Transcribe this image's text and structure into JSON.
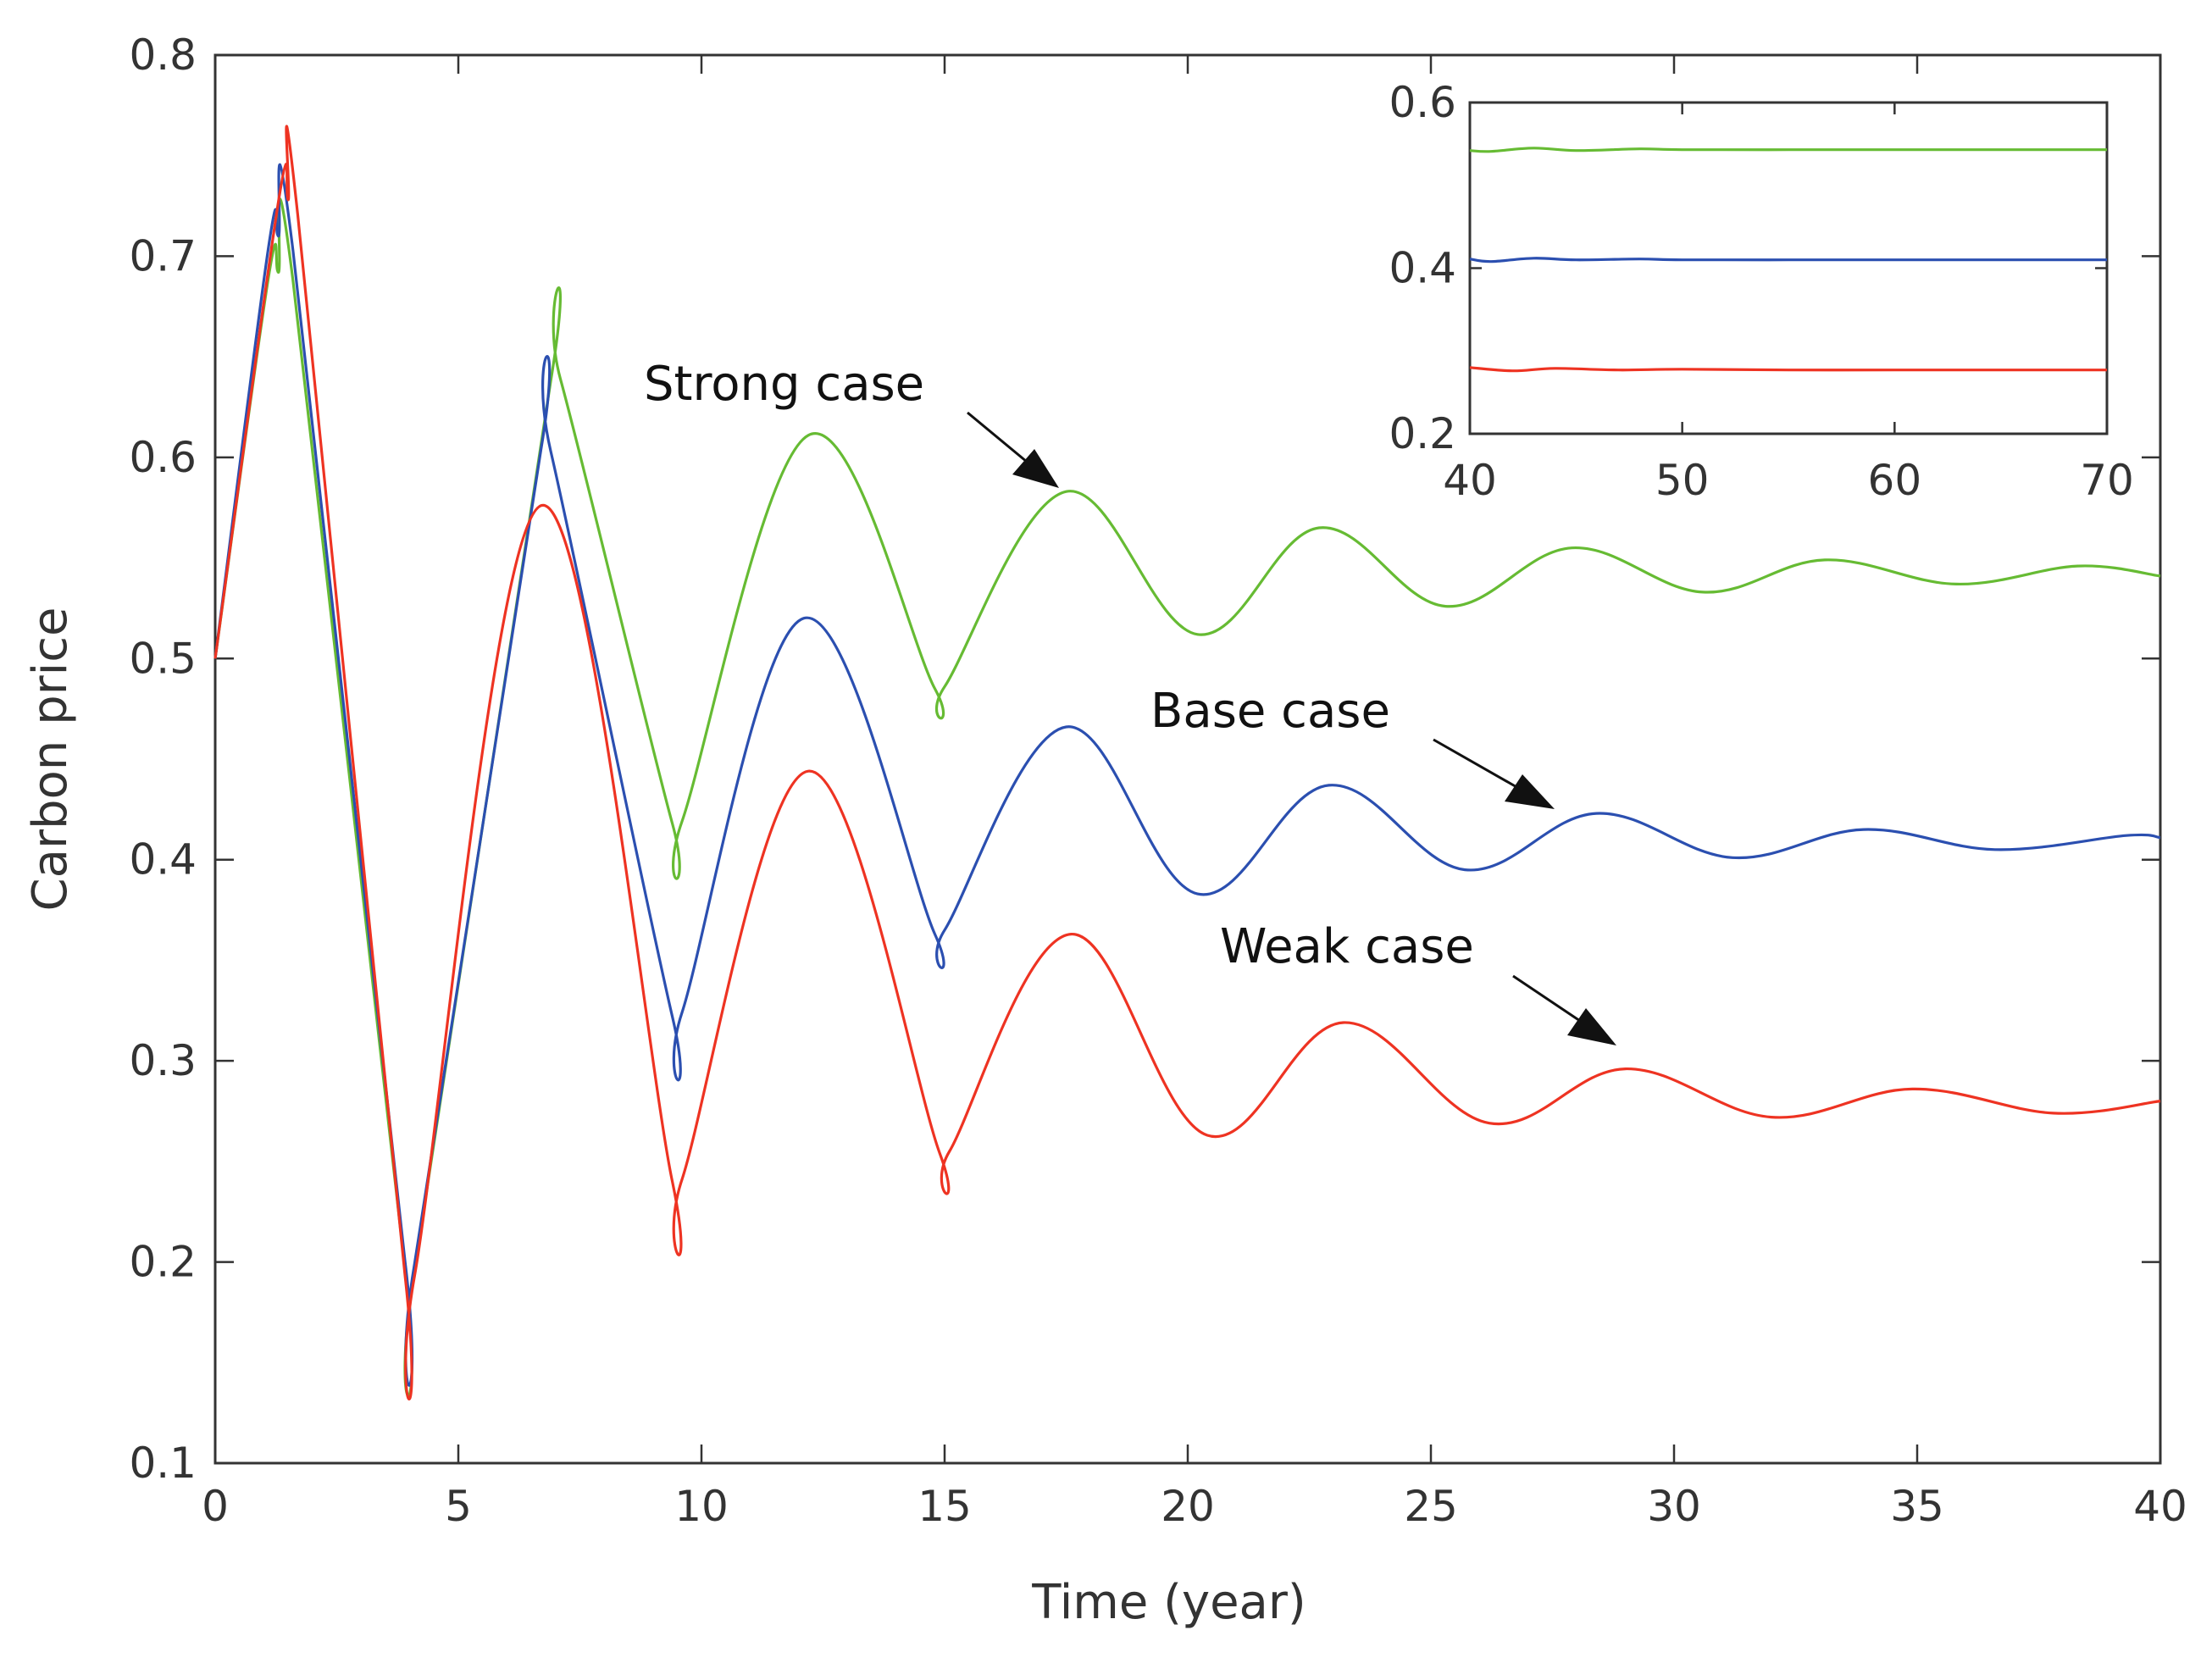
{
  "chart_data": {
    "type": "line",
    "xlabel": "Time (year)",
    "ylabel": "Carbon price",
    "xlim": [
      0,
      40
    ],
    "ylim": [
      0.1,
      0.8
    ],
    "xticks": [
      0,
      5,
      10,
      15,
      20,
      25,
      30,
      35,
      40
    ],
    "yticks": [
      0.1,
      0.2,
      0.3,
      0.4,
      0.5,
      0.6,
      0.7,
      0.8
    ],
    "xtick_labels": [
      "0",
      "5",
      "10",
      "15",
      "20",
      "25",
      "30",
      "35",
      "40"
    ],
    "ytick_labels": [
      "0.1",
      "0.2",
      "0.3",
      "0.4",
      "0.5",
      "0.6",
      "0.7",
      "0.8"
    ],
    "grid": false,
    "series": [
      {
        "name": "Strong case",
        "color": "#66bb33",
        "points": [
          [
            0,
            0.5
          ],
          [
            1.1,
            0.69
          ],
          [
            1.3,
            0.692
          ],
          [
            1.6,
            0.688
          ],
          [
            3.9,
            0.197
          ],
          [
            4.1,
            0.196
          ],
          [
            6.9,
            0.638
          ],
          [
            7.1,
            0.639
          ],
          [
            9.4,
            0.418
          ],
          [
            9.6,
            0.419
          ],
          [
            12.2,
            0.611
          ],
          [
            14.8,
            0.485
          ],
          [
            15.0,
            0.486
          ],
          [
            17.5,
            0.583
          ],
          [
            20.2,
            0.512
          ],
          [
            22.7,
            0.565
          ],
          [
            25.3,
            0.526
          ],
          [
            27.9,
            0.555
          ],
          [
            30.6,
            0.533
          ],
          [
            33.1,
            0.549
          ],
          [
            35.8,
            0.537
          ],
          [
            38.3,
            0.546
          ],
          [
            40,
            0.541
          ]
        ]
      },
      {
        "name": "Base case",
        "color": "#2b4fb0",
        "points": [
          [
            0,
            0.5
          ],
          [
            1.1,
            0.705
          ],
          [
            1.3,
            0.71
          ],
          [
            1.6,
            0.703
          ],
          [
            3.9,
            0.201
          ],
          [
            4.1,
            0.199
          ],
          [
            6.7,
            0.604
          ],
          [
            6.9,
            0.603
          ],
          [
            9.4,
            0.322
          ],
          [
            9.6,
            0.324
          ],
          [
            12.1,
            0.52
          ],
          [
            14.8,
            0.363
          ],
          [
            15.0,
            0.365
          ],
          [
            17.5,
            0.466
          ],
          [
            20.2,
            0.383
          ],
          [
            22.9,
            0.437
          ],
          [
            25.7,
            0.395
          ],
          [
            28.4,
            0.423
          ],
          [
            31.2,
            0.401
          ],
          [
            33.9,
            0.415
          ],
          [
            36.6,
            0.405
          ],
          [
            39.3,
            0.412
          ],
          [
            40,
            0.411
          ]
        ]
      },
      {
        "name": "Weak case",
        "color": "#ee3322",
        "points": [
          [
            0,
            0.5
          ],
          [
            1.3,
            0.727
          ],
          [
            1.5,
            0.728
          ],
          [
            1.7,
            0.72
          ],
          [
            3.9,
            0.194
          ],
          [
            4.1,
            0.193
          ],
          [
            6.7,
            0.576
          ],
          [
            9.4,
            0.24
          ],
          [
            9.6,
            0.241
          ],
          [
            12.2,
            0.444
          ],
          [
            14.9,
            0.254
          ],
          [
            15.1,
            0.255
          ],
          [
            17.6,
            0.363
          ],
          [
            20.4,
            0.263
          ],
          [
            23.2,
            0.319
          ],
          [
            26.2,
            0.269
          ],
          [
            29.0,
            0.296
          ],
          [
            32.0,
            0.272
          ],
          [
            34.9,
            0.286
          ],
          [
            37.8,
            0.274
          ],
          [
            40,
            0.28
          ]
        ]
      }
    ],
    "annotations": [
      {
        "text": "Strong case",
        "series": "Strong case"
      },
      {
        "text": "Base case",
        "series": "Base case"
      },
      {
        "text": "Weak case",
        "series": "Weak case"
      }
    ],
    "inset": {
      "type": "line",
      "xlim": [
        40,
        70
      ],
      "ylim": [
        0.2,
        0.6
      ],
      "xticks": [
        40,
        50,
        60,
        70
      ],
      "yticks": [
        0.2,
        0.4,
        0.6
      ],
      "xtick_labels": [
        "40",
        "50",
        "60",
        "70"
      ],
      "ytick_labels": [
        "0.2",
        "0.4",
        "0.6"
      ],
      "series": [
        {
          "name": "Strong case",
          "color": "#66bb33",
          "points": [
            [
              40,
              0.542
            ],
            [
              41,
              0.541
            ],
            [
              43,
              0.545
            ],
            [
              45,
              0.542
            ],
            [
              48,
              0.544
            ],
            [
              50,
              0.543
            ],
            [
              55,
              0.543
            ],
            [
              60,
              0.543
            ],
            [
              65,
              0.543
            ],
            [
              70,
              0.543
            ]
          ]
        },
        {
          "name": "Base case",
          "color": "#2b4fb0",
          "points": [
            [
              40,
              0.411
            ],
            [
              41,
              0.408
            ],
            [
              43,
              0.412
            ],
            [
              45,
              0.41
            ],
            [
              48,
              0.411
            ],
            [
              50,
              0.41
            ],
            [
              55,
              0.41
            ],
            [
              60,
              0.41
            ],
            [
              65,
              0.41
            ],
            [
              70,
              0.41
            ]
          ]
        },
        {
          "name": "Weak case",
          "color": "#ee3322",
          "points": [
            [
              40,
              0.28
            ],
            [
              42,
              0.276
            ],
            [
              44,
              0.279
            ],
            [
              47,
              0.277
            ],
            [
              50,
              0.278
            ],
            [
              55,
              0.277
            ],
            [
              60,
              0.277
            ],
            [
              65,
              0.277
            ],
            [
              70,
              0.277
            ]
          ]
        }
      ]
    }
  }
}
